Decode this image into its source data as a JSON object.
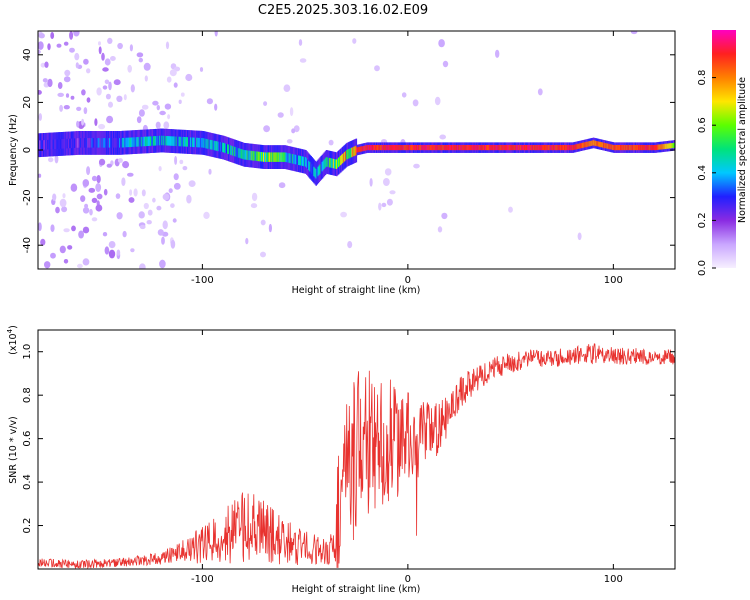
{
  "title": "C2E5.2025.303.16.02.E09",
  "colors": {
    "snr_line": "#e8322f",
    "axis": "#000000",
    "colorbar_stops": [
      "#f7f0ff",
      "#c9a6ff",
      "#8a2be2",
      "#2020ff",
      "#00c8ff",
      "#00e37a",
      "#5cff00",
      "#ffe600",
      "#ff8000",
      "#ff2020",
      "#ff00c0"
    ]
  },
  "chart_data": [
    {
      "type": "heatmap",
      "name": "spectrogram",
      "xlabel": "Height of straight line (km)",
      "ylabel": "Frequency (Hz)",
      "xlim": [
        -180,
        130
      ],
      "ylim": [
        -50,
        50
      ],
      "xticks": [
        -100,
        0,
        100
      ],
      "yticks": [
        -40,
        -20,
        0,
        20,
        40
      ],
      "xtick_labels": [
        "-100",
        "0",
        "100"
      ],
      "ytick_labels": [
        "-40",
        "-20",
        "0",
        "20",
        "40"
      ],
      "colorbar": {
        "label": "Normalized spectral amplitude",
        "range": [
          0,
          1
        ],
        "ticks": [
          0.0,
          0.2,
          0.4,
          0.6,
          0.8
        ],
        "tick_labels": [
          "0.0",
          "0.2",
          "0.4",
          "0.6",
          "0.8"
        ]
      },
      "ridge": {
        "description": "dominant frequency track",
        "x": [
          -180,
          -160,
          -140,
          -120,
          -100,
          -90,
          -80,
          -70,
          -60,
          -50,
          -45,
          -40,
          -35,
          -30,
          -25,
          -20,
          -10,
          0,
          10,
          20,
          40,
          60,
          80,
          90,
          100,
          120,
          130
        ],
        "freq": [
          2,
          3,
          3,
          4,
          3,
          1,
          -2,
          -3,
          -3,
          -5,
          -10,
          -5,
          -6,
          -2,
          0,
          1,
          1,
          1,
          1,
          1,
          1,
          1,
          1,
          3,
          1,
          1,
          2
        ],
        "amplitude": [
          0.3,
          0.3,
          0.45,
          0.5,
          0.45,
          0.5,
          0.55,
          0.7,
          0.6,
          0.45,
          0.45,
          0.55,
          0.75,
          0.9,
          0.95,
          0.95,
          0.95,
          0.95,
          0.95,
          0.95,
          0.95,
          0.95,
          0.95,
          0.85,
          0.9,
          0.95,
          0.6
        ]
      }
    },
    {
      "type": "line",
      "name": "snr",
      "xlabel": "Height of straight line (km)",
      "ylabel": "SNR (10 * v/v)",
      "y_multiplier": "(x10",
      "y_multiplier_exp": "4",
      "y_multiplier_close": ")",
      "xlim": [
        -180,
        130
      ],
      "ylim": [
        0,
        1.1
      ],
      "xticks": [
        -100,
        0,
        100
      ],
      "yticks": [
        0.2,
        0.4,
        0.6,
        0.8,
        1.0
      ],
      "xtick_labels": [
        "-100",
        "0",
        "100"
      ],
      "ytick_labels": [
        "0.2",
        "0.4",
        "0.6",
        "0.8",
        "1.0"
      ],
      "series": [
        {
          "name": "SNR",
          "x": [
            -180,
            -160,
            -140,
            -120,
            -110,
            -100,
            -90,
            -80,
            -70,
            -60,
            -50,
            -40,
            -36,
            -34,
            -30,
            -25,
            -22,
            -20,
            -15,
            -10,
            -5,
            0,
            5,
            10,
            15,
            20,
            25,
            30,
            35,
            40,
            50,
            60,
            70,
            80,
            90,
            100,
            110,
            120,
            130
          ],
          "y": [
            0.03,
            0.02,
            0.03,
            0.05,
            0.08,
            0.11,
            0.15,
            0.2,
            0.17,
            0.12,
            0.1,
            0.08,
            0.1,
            0.25,
            0.45,
            0.5,
            0.65,
            0.6,
            0.55,
            0.6,
            0.58,
            0.62,
            0.6,
            0.62,
            0.65,
            0.72,
            0.8,
            0.85,
            0.88,
            0.92,
            0.95,
            0.97,
            0.97,
            0.98,
            0.99,
            0.98,
            0.98,
            0.97,
            0.98
          ]
        }
      ],
      "noise_amplitude": [
        0.02,
        0.02,
        0.02,
        0.03,
        0.05,
        0.09,
        0.13,
        0.17,
        0.15,
        0.11,
        0.08,
        0.06,
        0.08,
        0.35,
        0.35,
        0.4,
        0.32,
        0.35,
        0.3,
        0.3,
        0.25,
        0.2,
        0.18,
        0.15,
        0.12,
        0.1,
        0.08,
        0.07,
        0.06,
        0.05,
        0.05,
        0.04,
        0.04,
        0.04,
        0.05,
        0.04,
        0.04,
        0.03,
        0.04
      ]
    }
  ]
}
